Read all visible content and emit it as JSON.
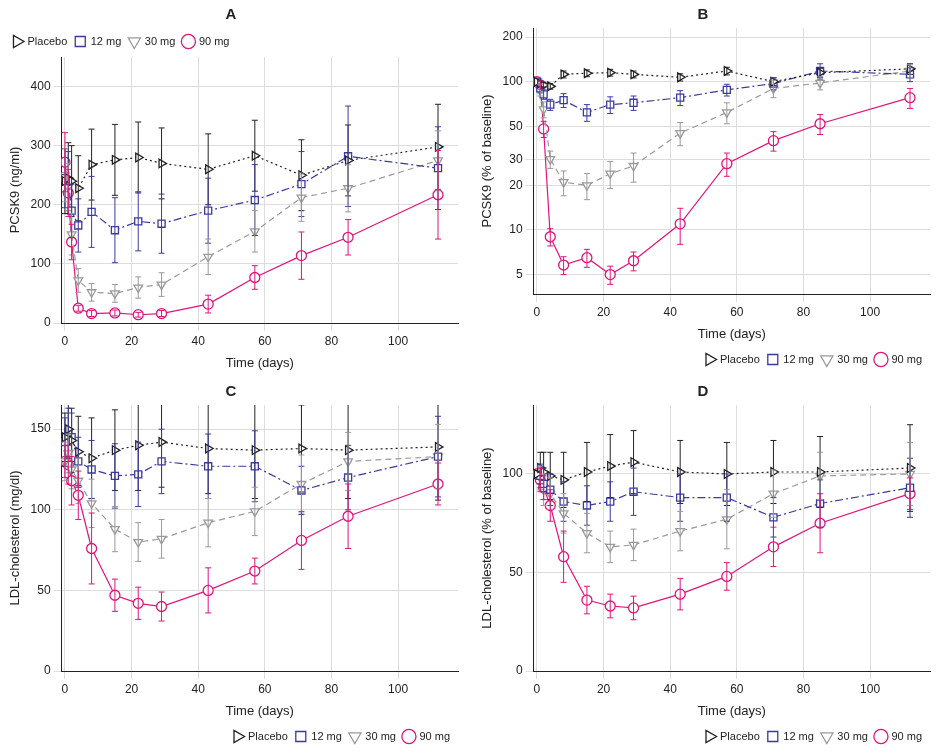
{
  "chart_data": [
    {
      "type": "line",
      "title": "A",
      "x_label": "Time (days)",
      "y_label": "PCSK9 (ng/ml)",
      "x": [
        0,
        1,
        2,
        4,
        8,
        15,
        22,
        29,
        43,
        57,
        71,
        85,
        112
      ],
      "xlim": [
        -1,
        118
      ],
      "xticks": [
        0,
        20,
        40,
        60,
        80,
        100
      ],
      "ylim": [
        0,
        450
      ],
      "yticks": [
        0,
        100,
        200,
        300,
        400
      ],
      "grid": true,
      "legend": "top",
      "series": [
        {
          "name": "Placebo",
          "color": "#222222",
          "marker": "triangle-right",
          "line_style": "dotted",
          "values": [
            240,
            245,
            240,
            228,
            268,
            276,
            280,
            270,
            260,
            283,
            250,
            275,
            298
          ],
          "errors": [
            55,
            60,
            60,
            55,
            60,
            60,
            60,
            60,
            60,
            60,
            60,
            60,
            72
          ]
        },
        {
          "name": "12 mg",
          "color": "#3b3b9e",
          "marker": "square",
          "line_style": "dashdot",
          "values": [
            245,
            240,
            190,
            165,
            188,
            157,
            172,
            168,
            190,
            208,
            235,
            282,
            262
          ],
          "errors": [
            50,
            50,
            45,
            45,
            60,
            55,
            50,
            50,
            55,
            60,
            55,
            85,
            70
          ]
        },
        {
          "name": "30 mg",
          "color": "#9a9a9a",
          "marker": "triangle-down",
          "line_style": "dashed",
          "values": [
            250,
            230,
            150,
            72,
            52,
            50,
            60,
            65,
            112,
            155,
            212,
            228,
            275
          ],
          "errors": [
            45,
            40,
            35,
            20,
            15,
            15,
            18,
            20,
            30,
            35,
            40,
            40,
            50
          ]
        },
        {
          "name": "90 mg",
          "color": "#e0157a",
          "marker": "circle",
          "line_style": "solid",
          "values": [
            272,
            220,
            137,
            25,
            16,
            17,
            14,
            16,
            32,
            77,
            114,
            145,
            217
          ],
          "errors": [
            50,
            40,
            30,
            5,
            5,
            5,
            4,
            5,
            15,
            20,
            40,
            30,
            75
          ]
        }
      ]
    },
    {
      "type": "line",
      "title": "B",
      "x_label": "Time (days)",
      "y_label": "PCSK9 (% of baseline)",
      "x": [
        0,
        1,
        2,
        4,
        8,
        15,
        22,
        29,
        43,
        57,
        71,
        85,
        112
      ],
      "xlim": [
        -1,
        118
      ],
      "xticks": [
        0,
        20,
        40,
        60,
        80,
        100
      ],
      "ylim": [
        3.7,
        230
      ],
      "yticks": [
        5,
        10,
        20,
        30,
        50,
        100,
        200
      ],
      "log": "y",
      "grid": true,
      "legend": "bottom",
      "series": [
        {
          "name": "Placebo",
          "color": "#222222",
          "marker": "triangle-right",
          "line_style": "dotted",
          "values": [
            100,
            97,
            95,
            93,
            112,
            114,
            115,
            112,
            107,
            118,
            100,
            115,
            122
          ],
          "errors": [
            0,
            4,
            4,
            4,
            6,
            6,
            6,
            6,
            6,
            7,
            6,
            8,
            10
          ]
        },
        {
          "name": "12 mg",
          "color": "#3b3b9e",
          "marker": "square",
          "line_style": "dashdot",
          "values": [
            100,
            90,
            82,
            70,
            75,
            62,
            70,
            72,
            78,
            88,
            97,
            118,
            112
          ],
          "errors": [
            0,
            6,
            6,
            6,
            8,
            8,
            9,
            8,
            9,
            8,
            9,
            14,
            12
          ]
        },
        {
          "name": "30 mg",
          "color": "#9a9a9a",
          "marker": "triangle-down",
          "line_style": "dashed",
          "values": [
            100,
            88,
            65,
            30,
            21,
            20,
            24,
            27,
            45,
            62,
            90,
            98,
            118
          ],
          "errors": [
            0,
            8,
            8,
            4,
            4,
            4,
            5,
            6,
            8,
            10,
            12,
            10,
            12
          ]
        },
        {
          "name": "90 mg",
          "color": "#e0157a",
          "marker": "circle",
          "line_style": "solid",
          "values": [
            100,
            95,
            48,
            9,
            5.8,
            6.5,
            5,
            6.2,
            11,
            28,
            40,
            52,
            78
          ],
          "errors": [
            0,
            6,
            6,
            1.2,
            0.8,
            0.9,
            0.7,
            0.9,
            3,
            5,
            6,
            8,
            12
          ]
        }
      ]
    },
    {
      "type": "line",
      "title": "C",
      "x_label": "Time (days)",
      "y_label": "LDL-cholesterol (mg/dl)",
      "x": [
        0,
        1,
        2,
        4,
        8,
        15,
        22,
        29,
        43,
        57,
        71,
        85,
        112
      ],
      "xlim": [
        -1,
        118
      ],
      "xticks": [
        0,
        20,
        40,
        60,
        80,
        100
      ],
      "ylim": [
        0,
        165
      ],
      "yticks": [
        0,
        50,
        100,
        150
      ],
      "grid": true,
      "legend": "bottom",
      "series": [
        {
          "name": "Placebo",
          "color": "#222222",
          "marker": "triangle-right",
          "line_style": "dotted",
          "values": [
            145,
            150,
            143,
            136,
            132,
            137,
            140,
            142,
            138,
            137,
            138,
            137,
            139
          ],
          "errors": [
            15,
            18,
            20,
            22,
            25,
            25,
            28,
            28,
            28,
            30,
            27,
            30,
            33
          ]
        },
        {
          "name": "12 mg",
          "color": "#3b3b9e",
          "marker": "square",
          "line_style": "dashdot",
          "values": [
            142,
            148,
            145,
            130,
            125,
            121,
            122,
            130,
            127,
            127,
            112,
            120,
            133
          ],
          "errors": [
            15,
            15,
            15,
            15,
            18,
            20,
            20,
            20,
            20,
            22,
            15,
            20,
            25
          ]
        },
        {
          "name": "30 mg",
          "color": "#9a9a9a",
          "marker": "triangle-down",
          "line_style": "dashed",
          "values": [
            130,
            135,
            125,
            118,
            104,
            88,
            80,
            82,
            92,
            99,
            116,
            130,
            133
          ],
          "errors": [
            12,
            12,
            12,
            14,
            15,
            14,
            12,
            12,
            15,
            15,
            18,
            18,
            20
          ]
        },
        {
          "name": "90 mg",
          "color": "#e0157a",
          "marker": "circle",
          "line_style": "solid",
          "values": [
            130,
            128,
            118,
            109,
            76,
            47,
            42,
            40,
            50,
            62,
            81,
            96,
            116
          ],
          "errors": [
            10,
            12,
            15,
            15,
            22,
            10,
            10,
            9,
            14,
            8,
            18,
            20,
            13
          ]
        }
      ]
    },
    {
      "type": "line",
      "title": "D",
      "x_label": "Time (days)",
      "y_label": "LDL-cholesterol (% of baseline)",
      "x": [
        0,
        1,
        2,
        4,
        8,
        15,
        22,
        29,
        43,
        57,
        71,
        85,
        112
      ],
      "xlim": [
        -1,
        118
      ],
      "xticks": [
        0,
        20,
        40,
        60,
        80,
        100
      ],
      "ylim": [
        0,
        135
      ],
      "yticks": [
        0,
        50,
        100
      ],
      "grid": true,
      "legend": "bottom",
      "series": [
        {
          "name": "Placebo",
          "color": "#222222",
          "marker": "triangle-right",
          "line_style": "dotted",
          "values": [
            100,
            103,
            101,
            99,
            97,
            101,
            104,
            106,
            101,
            100,
            101,
            101,
            103
          ],
          "errors": [
            0,
            8,
            10,
            12,
            14,
            15,
            16,
            16,
            16,
            16,
            16,
            18,
            22
          ]
        },
        {
          "name": "12 mg",
          "color": "#3b3b9e",
          "marker": "square",
          "line_style": "dashdot",
          "values": [
            100,
            99,
            95,
            92,
            86,
            84,
            86,
            91,
            88,
            88,
            78,
            85,
            93
          ],
          "errors": [
            0,
            6,
            8,
            8,
            10,
            10,
            10,
            12,
            12,
            12,
            10,
            12,
            15
          ]
        },
        {
          "name": "30 mg",
          "color": "#9a9a9a",
          "marker": "triangle-down",
          "line_style": "dashed",
          "values": [
            100,
            98,
            92,
            90,
            80,
            70,
            63,
            64,
            71,
            77,
            90,
            99,
            100
          ],
          "errors": [
            0,
            6,
            8,
            8,
            10,
            10,
            8,
            8,
            10,
            15,
            12,
            12,
            16
          ]
        },
        {
          "name": "90 mg",
          "color": "#e0157a",
          "marker": "circle",
          "line_style": "solid",
          "values": [
            100,
            97,
            93,
            84,
            58,
            36,
            33,
            32,
            39,
            48,
            63,
            75,
            90
          ],
          "errors": [
            0,
            6,
            6,
            8,
            13,
            7,
            6,
            6,
            8,
            7,
            10,
            15,
            8
          ]
        }
      ]
    }
  ]
}
